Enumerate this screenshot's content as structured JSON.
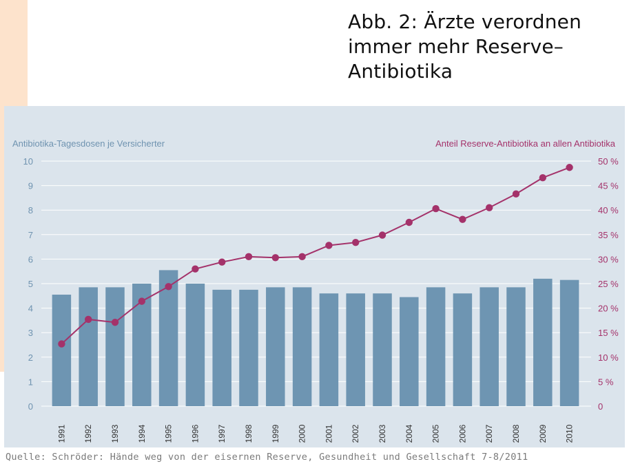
{
  "title_lines": [
    "Abb. 2: Ärzte verordnen",
    "immer mehr Reserve–",
    "Antibiotika"
  ],
  "source": "Quelle: Schröder: Hände weg von der eisernen Reserve, Gesundheit und Gesellschaft 7-8/2011",
  "colors": {
    "bar": "#6e95b2",
    "line": "#a4326a",
    "panel": "#dbe4ec",
    "left_axis_text": "#6f93b0",
    "right_axis_text": "#a4326a"
  },
  "chart_data": {
    "type": "bar+line",
    "categories": [
      "1991",
      "1992",
      "1993",
      "1994",
      "1995",
      "1996",
      "1997",
      "1998",
      "1999",
      "2000",
      "2001",
      "2002",
      "2003",
      "2004",
      "2005",
      "2006",
      "2007",
      "2008",
      "2009",
      "2010"
    ],
    "series": [
      {
        "name": "Antibiotika-Tagesdosen je Versicherter",
        "type": "bar",
        "axis": "left",
        "values": [
          4.55,
          4.85,
          4.85,
          5.0,
          5.55,
          5.0,
          4.75,
          4.75,
          4.85,
          4.85,
          4.6,
          4.6,
          4.6,
          4.45,
          4.85,
          4.6,
          4.85,
          4.85,
          5.2,
          5.15
        ]
      },
      {
        "name": "Anteil Reserve-Antibiotika an allen Antibiotika",
        "type": "line",
        "axis": "right",
        "values": [
          12.7,
          17.7,
          17.1,
          21.4,
          24.4,
          28.0,
          29.4,
          30.5,
          30.3,
          30.5,
          32.8,
          33.4,
          34.9,
          37.5,
          40.3,
          38.1,
          40.5,
          43.3,
          46.6,
          48.7
        ]
      }
    ],
    "left_axis": {
      "label": "Antibiotika-Tagesdosen je Versicherter",
      "range": [
        0,
        10
      ],
      "ticks": [
        "0",
        "1",
        "2",
        "3",
        "4",
        "5",
        "6",
        "7",
        "8",
        "9",
        "10"
      ]
    },
    "right_axis": {
      "label": "Anteil Reserve-Antibiotika an allen Antibiotika",
      "range": [
        0,
        50
      ],
      "ticks": [
        "0",
        "5 %",
        "10 %",
        "15 %",
        "20 %",
        "25 %",
        "30 %",
        "35 %",
        "40 %",
        "45 %",
        "50 %"
      ]
    },
    "grid": true
  }
}
